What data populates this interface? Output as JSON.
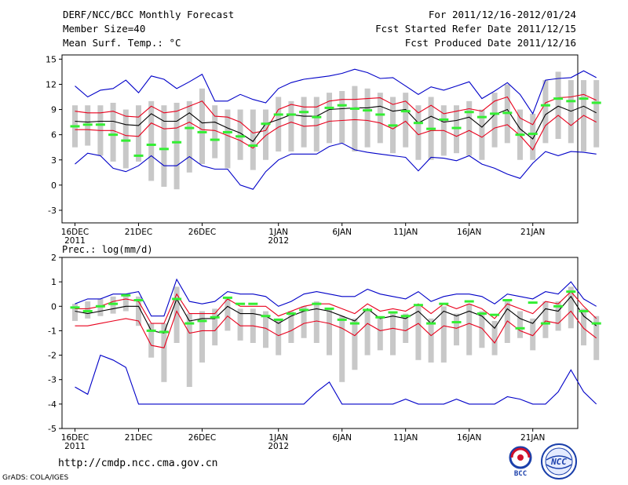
{
  "header": {
    "title": "DERF/NCC/BCC Monthly Forecast",
    "member_size": "Member Size=40",
    "variable": "Mean Surf. Temp.: °C",
    "forecast_range": "For 2011/12/16-2012/01/24",
    "start_date": "Fcst Started Refer Date 2011/12/15",
    "produced_date": "Fcst Produced Date 2011/12/16"
  },
  "footer": {
    "url": "http://cmdp.ncc.cma.gov.cn",
    "credit": "GrADS: COLA/IGES"
  },
  "logos": [
    {
      "name": "bcc-logo",
      "text": "BCC"
    },
    {
      "name": "ncc-logo",
      "text": "NCC"
    }
  ],
  "colors": {
    "mean": "#000000",
    "spread": "#e8001c",
    "extremes": "#0000c8",
    "observed": "#33ee33",
    "box": "#c8c8c8"
  },
  "chart_data": [
    {
      "type": "line",
      "title": "Mean Surf. Temp.: °C",
      "ylim": [
        -4.5,
        15.5
      ],
      "yticks": [
        -3,
        0,
        3,
        6,
        9,
        12,
        15
      ],
      "xticks": [
        {
          "day": 1,
          "label": "16DEC",
          "sub": "2011"
        },
        {
          "day": 6,
          "label": "21DEC",
          "sub": ""
        },
        {
          "day": 11,
          "label": "26DEC",
          "sub": ""
        },
        {
          "day": 17,
          "label": "1JAN",
          "sub": "2012"
        },
        {
          "day": 22,
          "label": "6JAN",
          "sub": ""
        },
        {
          "day": 27,
          "label": "11JAN",
          "sub": ""
        },
        {
          "day": 32,
          "label": "16JAN",
          "sub": ""
        },
        {
          "day": 37,
          "label": "21JAN",
          "sub": ""
        }
      ],
      "series": [
        {
          "name": "ensemble-max",
          "color": "#0000c8",
          "values": [
            11.8,
            10.5,
            11.3,
            11.5,
            12.5,
            11,
            13,
            12.6,
            11.5,
            12.3,
            13.2,
            10,
            10,
            10.8,
            10.2,
            9.8,
            11.5,
            12.2,
            12.6,
            12.8,
            13,
            13.3,
            13.8,
            13.4,
            12.7,
            12.8,
            11.8,
            10.8,
            11.7,
            11.3,
            11.8,
            12.3,
            10.3,
            11.2,
            12.2,
            10.8,
            8.5,
            12.5,
            12.7,
            12.8,
            13.6,
            12.8
          ]
        },
        {
          "name": "upper-spread",
          "color": "#e8001c",
          "values": [
            8.8,
            8.6,
            8.6,
            8.8,
            8.2,
            8.1,
            9.4,
            8.6,
            8.8,
            9.4,
            10,
            8.2,
            8.1,
            7.5,
            6.2,
            6.5,
            9,
            9.6,
            9.3,
            9.3,
            10,
            10.2,
            10.2,
            10.3,
            10.4,
            9.6,
            10,
            8.6,
            9.5,
            8.5,
            8.8,
            9.1,
            8.8,
            10,
            10.5,
            8,
            7.2,
            9.8,
            10.4,
            10.5,
            10.8,
            10.1
          ]
        },
        {
          "name": "ensemble-mean",
          "color": "#000000",
          "values": [
            7.6,
            7.5,
            7.6,
            7.6,
            7.2,
            7.1,
            8.5,
            7.6,
            7.6,
            8.6,
            7.4,
            7.5,
            6.8,
            6.2,
            5.2,
            7.3,
            7.8,
            8.4,
            8.2,
            8.2,
            9,
            9.1,
            9.2,
            9.2,
            9.4,
            8.8,
            9,
            7.4,
            8.2,
            7.5,
            7.7,
            8.1,
            6.9,
            8.4,
            9,
            6.7,
            5.5,
            8.4,
            9.4,
            8.8,
            9.4,
            8.6
          ]
        },
        {
          "name": "lower-spread",
          "color": "#e8001c",
          "values": [
            6.6,
            6.6,
            6.5,
            6.5,
            5.9,
            5.8,
            7.4,
            6.7,
            6.8,
            7.5,
            6.6,
            6.5,
            5.9,
            5.3,
            4.4,
            5.9,
            6.9,
            7.5,
            7,
            7.1,
            7.6,
            7.7,
            7.8,
            7.7,
            7.4,
            6.7,
            7.6,
            6,
            6.5,
            6.5,
            5.8,
            6.5,
            5.7,
            6.8,
            7.2,
            5.9,
            4.2,
            7.1,
            8.3,
            7.1,
            8.3,
            7.5
          ]
        },
        {
          "name": "ensemble-min",
          "color": "#0000c8",
          "values": [
            2.5,
            3.8,
            3.5,
            2,
            1.6,
            2.3,
            3.5,
            2.3,
            2.3,
            3.4,
            2.3,
            1.9,
            1.9,
            0,
            -0.5,
            1.6,
            3,
            3.7,
            3.7,
            3.7,
            4.6,
            5,
            4.2,
            3.9,
            3.7,
            3.5,
            3.3,
            1.7,
            3.3,
            3.2,
            2.9,
            3.5,
            2.5,
            2,
            1.3,
            0.8,
            2.6,
            4,
            3.5,
            4,
            3.9,
            3.7
          ]
        }
      ],
      "boxes": [
        [
          4.5,
          9.5
        ],
        [
          4.7,
          9.5
        ],
        [
          3.5,
          9.5
        ],
        [
          2.8,
          9.8
        ],
        [
          2,
          9
        ],
        [
          2.8,
          9.5
        ],
        [
          0.5,
          10
        ],
        [
          -0.2,
          9.5
        ],
        [
          -0.5,
          9.8
        ],
        [
          1.5,
          10
        ],
        [
          2.5,
          11.5
        ],
        [
          3.2,
          9.5
        ],
        [
          2,
          9
        ],
        [
          3,
          9
        ],
        [
          1.8,
          9
        ],
        [
          3,
          9
        ],
        [
          4,
          10.5
        ],
        [
          4,
          10
        ],
        [
          4.5,
          10.5
        ],
        [
          4,
          10.5
        ],
        [
          5,
          11
        ],
        [
          5,
          11.2
        ],
        [
          4,
          11.8
        ],
        [
          4.5,
          11.5
        ],
        [
          5,
          11
        ],
        [
          3.8,
          10.5
        ],
        [
          4.5,
          11
        ],
        [
          3,
          9.5
        ],
        [
          3,
          10.5
        ],
        [
          3.5,
          9.5
        ],
        [
          3.8,
          9.5
        ],
        [
          3.5,
          10
        ],
        [
          3,
          9
        ],
        [
          4.5,
          11
        ],
        [
          5,
          12
        ],
        [
          3,
          9
        ],
        [
          3,
          8.5
        ],
        [
          5,
          12.5
        ],
        [
          5.5,
          13.5
        ],
        [
          5,
          12.5
        ],
        [
          4,
          12.5
        ],
        [
          4.5,
          12.5
        ]
      ],
      "observed": [
        7,
        7.2,
        7.2,
        6,
        5.3,
        3.5,
        4.8,
        4.3,
        5.1,
        6.8,
        6.3,
        5.4,
        6.3,
        5.8,
        4.7,
        7.3,
        8.4,
        8.4,
        8.7,
        8.1,
        9.2,
        9.5,
        9.1,
        8.9,
        8.4,
        7.1,
        8.8,
        7.4,
        6.7,
        7.8,
        6.8,
        8.7,
        8.1,
        8.5,
        8.6,
        6,
        6.1,
        9.5,
        10.3,
        10,
        10.3,
        9.8
      ]
    },
    {
      "type": "line",
      "title": "Prec.: log(mm/d)",
      "ylim": [
        -5,
        2
      ],
      "yticks": [
        -5,
        -4,
        -3,
        -2,
        -1,
        0,
        1,
        2
      ],
      "xticks": [
        {
          "day": 1,
          "label": "16DEC",
          "sub": "2011"
        },
        {
          "day": 6,
          "label": "21DEC",
          "sub": ""
        },
        {
          "day": 11,
          "label": "26DEC",
          "sub": ""
        },
        {
          "day": 17,
          "label": "1JAN",
          "sub": "2012"
        },
        {
          "day": 22,
          "label": "6JAN",
          "sub": ""
        },
        {
          "day": 27,
          "label": "11JAN",
          "sub": ""
        },
        {
          "day": 32,
          "label": "16JAN",
          "sub": ""
        },
        {
          "day": 37,
          "label": "21JAN",
          "sub": ""
        }
      ],
      "series": [
        {
          "name": "ensemble-max",
          "color": "#0000c8",
          "values": [
            0.1,
            0.3,
            0.3,
            0.5,
            0.5,
            0.6,
            -0.4,
            -0.4,
            1.1,
            0.2,
            0.1,
            0.2,
            0.6,
            0.5,
            0.5,
            0.4,
            0,
            0.2,
            0.5,
            0.6,
            0.5,
            0.4,
            0.4,
            0.7,
            0.5,
            0.4,
            0.3,
            0.6,
            0.2,
            0.4,
            0.5,
            0.5,
            0.4,
            0.1,
            0.5,
            0.4,
            0.3,
            0.6,
            0.5,
            1,
            0.3,
            0
          ]
        },
        {
          "name": "upper-spread",
          "color": "#e8001c",
          "values": [
            -0.1,
            -0.1,
            0,
            0.2,
            0.3,
            0.2,
            -0.7,
            -0.7,
            0.5,
            -0.3,
            -0.3,
            -0.3,
            0.3,
            0,
            0,
            0,
            -0.4,
            -0.2,
            0,
            0.1,
            0.1,
            -0.1,
            -0.3,
            0.1,
            -0.2,
            -0.1,
            -0.2,
            0.1,
            -0.3,
            0.1,
            -0.1,
            0.1,
            -0.1,
            -0.5,
            0.1,
            -0.1,
            -0.3,
            0.2,
            0.1,
            0.6,
            0,
            -0.5
          ]
        },
        {
          "name": "ensemble-mean",
          "color": "#000000",
          "values": [
            -0.2,
            -0.3,
            -0.2,
            -0.1,
            0,
            0,
            -1,
            -1.1,
            0.3,
            -0.6,
            -0.5,
            -0.5,
            0,
            -0.3,
            -0.3,
            -0.4,
            -0.7,
            -0.4,
            -0.2,
            -0.1,
            -0.2,
            -0.4,
            -0.6,
            -0.1,
            -0.5,
            -0.4,
            -0.5,
            -0.2,
            -0.7,
            -0.2,
            -0.4,
            -0.2,
            -0.4,
            -0.9,
            -0.1,
            -0.5,
            -0.7,
            -0.1,
            -0.2,
            0.4,
            -0.4,
            -0.8
          ]
        },
        {
          "name": "lower-spread",
          "color": "#e8001c",
          "values": [
            -0.8,
            -0.8,
            -0.7,
            -0.6,
            -0.5,
            -0.6,
            -1.6,
            -1.7,
            -0.2,
            -1.1,
            -1,
            -1,
            -0.4,
            -0.8,
            -0.8,
            -0.9,
            -1.2,
            -1,
            -0.7,
            -0.6,
            -0.7,
            -0.9,
            -1.2,
            -0.7,
            -1,
            -0.9,
            -1,
            -0.7,
            -1.2,
            -0.8,
            -0.9,
            -0.7,
            -0.9,
            -1.5,
            -0.6,
            -1,
            -1.2,
            -0.6,
            -0.7,
            -0.2,
            -0.9,
            -1.3
          ]
        },
        {
          "name": "ensemble-min",
          "color": "#0000c8",
          "values": [
            -3.3,
            -3.6,
            -2,
            -2.2,
            -2.5,
            -4,
            -4,
            -4,
            -4,
            -4,
            -4,
            -4,
            -4,
            -4,
            -4,
            -4,
            -4,
            -4,
            -4,
            -3.5,
            -3.1,
            -4,
            -4,
            -4,
            -4,
            -4,
            -3.8,
            -4,
            -4,
            -4,
            -3.8,
            -4,
            -4,
            -4,
            -3.7,
            -3.8,
            -4,
            -4,
            -3.5,
            -2.6,
            -3.5,
            -4
          ]
        }
      ],
      "boxes": [
        [
          -0.6,
          0.1
        ],
        [
          -0.5,
          0.2
        ],
        [
          -0.4,
          0.3
        ],
        [
          -0.3,
          0.4
        ],
        [
          -0.2,
          0.5
        ],
        [
          -0.8,
          0.4
        ],
        [
          -2.1,
          -0.7
        ],
        [
          -3.1,
          -0.7
        ],
        [
          -1.5,
          0.8
        ],
        [
          -3.3,
          -0.3
        ],
        [
          -2.3,
          -0.2
        ],
        [
          -1.6,
          -0.1
        ],
        [
          -1,
          0.3
        ],
        [
          -1.4,
          -0.1
        ],
        [
          -1.5,
          -0.1
        ],
        [
          -1.7,
          -0.2
        ],
        [
          -2,
          -0.5
        ],
        [
          -1.5,
          -0.2
        ],
        [
          -1.3,
          0
        ],
        [
          -1.5,
          0.2
        ],
        [
          -2,
          -0.1
        ],
        [
          -3.1,
          -0.4
        ],
        [
          -2.6,
          -0.5
        ],
        [
          -2,
          -0.1
        ],
        [
          -1.8,
          -0.4
        ],
        [
          -2,
          -0.3
        ],
        [
          -1.5,
          -0.3
        ],
        [
          -2.2,
          0
        ],
        [
          -2.3,
          -0.5
        ],
        [
          -2.3,
          0
        ],
        [
          -1.6,
          -0.3
        ],
        [
          -2,
          0.1
        ],
        [
          -1.7,
          -0.2
        ],
        [
          -2,
          -0.6
        ],
        [
          -1.5,
          0.2
        ],
        [
          -1.3,
          -0.2
        ],
        [
          -1.8,
          -0.5
        ],
        [
          -1.3,
          0.2
        ],
        [
          -1,
          0.2
        ],
        [
          -0.9,
          0.8
        ],
        [
          -1.6,
          -0.1
        ],
        [
          -2.2,
          -0.4
        ]
      ],
      "observed": [
        -0.05,
        -0.2,
        0,
        0.1,
        0.45,
        0.25,
        -1,
        -1.05,
        0.3,
        -0.7,
        -0.6,
        -0.45,
        0.35,
        0.1,
        0.1,
        -0.4,
        -0.55,
        -0.3,
        -0.15,
        0.1,
        -0.1,
        -0.55,
        -0.7,
        -0.15,
        -0.45,
        -0.25,
        -0.4,
        0.05,
        -0.7,
        0.1,
        -0.65,
        0.2,
        -0.3,
        -0.35,
        0.25,
        -0.9,
        0.15,
        -0.7,
        0,
        0.6,
        -0.2,
        -0.7
      ]
    }
  ]
}
